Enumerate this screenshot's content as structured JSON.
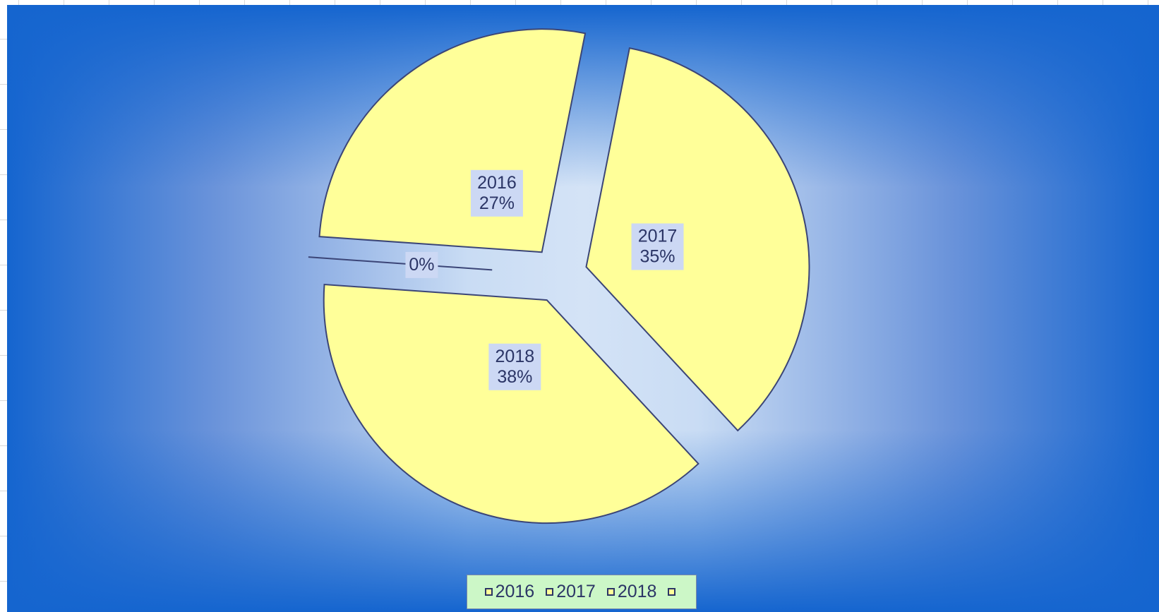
{
  "chart_data": {
    "type": "pie",
    "exploded": true,
    "categories": [
      "2016",
      "2017",
      "2018",
      ""
    ],
    "values": [
      27,
      35,
      38,
      0
    ],
    "data_labels": [
      {
        "category": "2016",
        "percent": "27%"
      },
      {
        "category": "2017",
        "percent": "35%"
      },
      {
        "category": "2018",
        "percent": "38%"
      },
      {
        "category": "",
        "percent": "0%"
      }
    ],
    "legend": {
      "placement": "bottom",
      "entries": [
        "2016",
        "2017",
        "2018",
        ""
      ]
    },
    "colors": {
      "slice_fill": "#ffff99",
      "slice_stroke": "#3b4577",
      "background_edge": "#1565cf",
      "background_center": "#d4e3f6",
      "label_box": "#ccd8f4",
      "legend_box": "#ccf7c7"
    }
  }
}
